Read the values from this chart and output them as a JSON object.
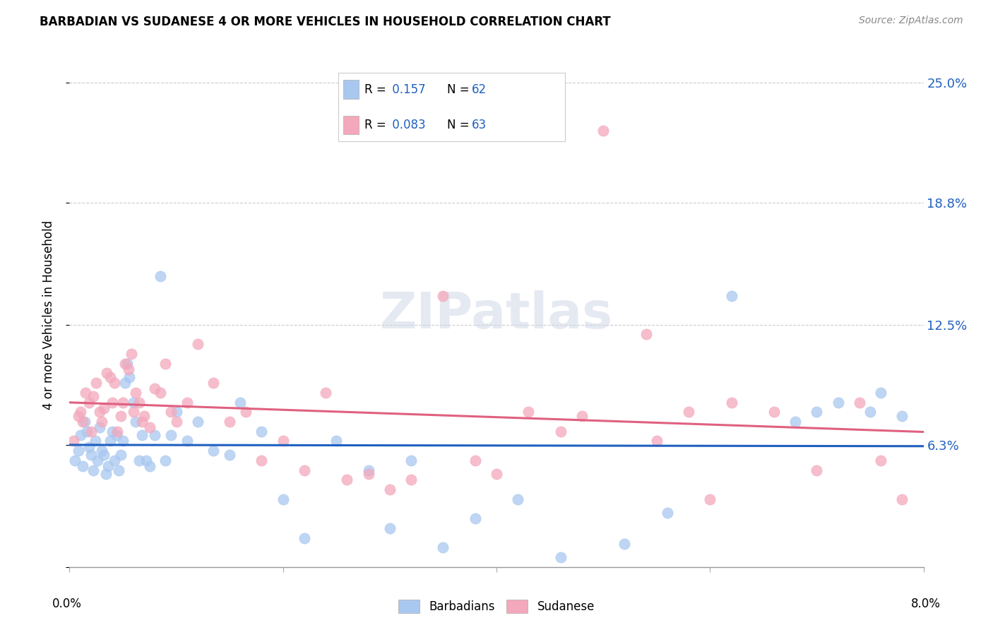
{
  "title": "BARBADIAN VS SUDANESE 4 OR MORE VEHICLES IN HOUSEHOLD CORRELATION CHART",
  "source": "Source: ZipAtlas.com",
  "ylabel": "4 or more Vehicles in Household",
  "xlim": [
    0.0,
    8.0
  ],
  "ylim": [
    0.0,
    26.0
  ],
  "ytick_vals": [
    0.0,
    6.3,
    12.5,
    18.8,
    25.0
  ],
  "ytick_labels": [
    "",
    "6.3%",
    "12.5%",
    "18.8%",
    "25.0%"
  ],
  "xtick_positions": [
    0.0,
    2.0,
    4.0,
    6.0,
    8.0
  ],
  "barbadian_color": "#a8c8f0",
  "sudanese_color": "#f4a8bc",
  "barbadian_line_color": "#2060c0",
  "sudanese_line_color": "#e06080",
  "R_barbadian": 0.157,
  "N_barbadian": 62,
  "R_sudanese": 0.083,
  "N_sudanese": 63,
  "watermark": "ZIPatlas",
  "barbadian_x": [
    0.05,
    0.08,
    0.1,
    0.12,
    0.14,
    0.16,
    0.18,
    0.2,
    0.22,
    0.24,
    0.26,
    0.28,
    0.3,
    0.32,
    0.34,
    0.36,
    0.38,
    0.4,
    0.42,
    0.44,
    0.46,
    0.48,
    0.5,
    0.52,
    0.54,
    0.56,
    0.6,
    0.62,
    0.65,
    0.68,
    0.72,
    0.75,
    0.8,
    0.85,
    0.9,
    0.95,
    1.0,
    1.1,
    1.2,
    1.35,
    1.5,
    1.6,
    1.8,
    2.0,
    2.2,
    2.5,
    2.8,
    3.0,
    3.2,
    3.5,
    3.8,
    4.2,
    4.6,
    5.2,
    5.6,
    6.2,
    6.8,
    7.0,
    7.2,
    7.5,
    7.6,
    7.8
  ],
  "barbadian_y": [
    5.5,
    6.0,
    6.8,
    5.2,
    7.5,
    7.0,
    6.2,
    5.8,
    5.0,
    6.5,
    5.5,
    7.2,
    6.0,
    5.8,
    4.8,
    5.2,
    6.5,
    7.0,
    5.5,
    6.8,
    5.0,
    5.8,
    6.5,
    9.5,
    10.5,
    9.8,
    8.5,
    7.5,
    5.5,
    6.8,
    5.5,
    5.2,
    6.8,
    15.0,
    5.5,
    6.8,
    8.0,
    6.5,
    7.5,
    6.0,
    5.8,
    8.5,
    7.0,
    3.5,
    1.5,
    6.5,
    5.0,
    2.0,
    5.5,
    1.0,
    2.5,
    3.5,
    0.5,
    1.2,
    2.8,
    14.0,
    7.5,
    8.0,
    8.5,
    8.0,
    9.0,
    7.8
  ],
  "sudanese_x": [
    0.04,
    0.08,
    0.1,
    0.12,
    0.15,
    0.18,
    0.2,
    0.22,
    0.25,
    0.28,
    0.3,
    0.32,
    0.35,
    0.38,
    0.4,
    0.42,
    0.45,
    0.48,
    0.5,
    0.52,
    0.55,
    0.58,
    0.6,
    0.62,
    0.65,
    0.68,
    0.7,
    0.75,
    0.8,
    0.85,
    0.9,
    0.95,
    1.0,
    1.1,
    1.2,
    1.35,
    1.5,
    1.65,
    1.8,
    2.0,
    2.2,
    2.4,
    2.6,
    2.8,
    3.0,
    3.2,
    3.5,
    3.8,
    4.0,
    4.3,
    4.6,
    5.0,
    5.4,
    5.8,
    6.2,
    6.6,
    7.0,
    7.4,
    7.6,
    7.8,
    4.8,
    5.5,
    6.0
  ],
  "sudanese_y": [
    6.5,
    7.8,
    8.0,
    7.5,
    9.0,
    8.5,
    7.0,
    8.8,
    9.5,
    8.0,
    7.5,
    8.2,
    10.0,
    9.8,
    8.5,
    9.5,
    7.0,
    7.8,
    8.5,
    10.5,
    10.2,
    11.0,
    8.0,
    9.0,
    8.5,
    7.5,
    7.8,
    7.2,
    9.2,
    9.0,
    10.5,
    8.0,
    7.5,
    8.5,
    11.5,
    9.5,
    7.5,
    8.0,
    5.5,
    6.5,
    5.0,
    9.0,
    4.5,
    4.8,
    4.0,
    4.5,
    14.0,
    5.5,
    4.8,
    8.0,
    7.0,
    22.5,
    12.0,
    8.0,
    8.5,
    8.0,
    5.0,
    8.5,
    5.5,
    3.5,
    7.8,
    6.5,
    3.5
  ]
}
